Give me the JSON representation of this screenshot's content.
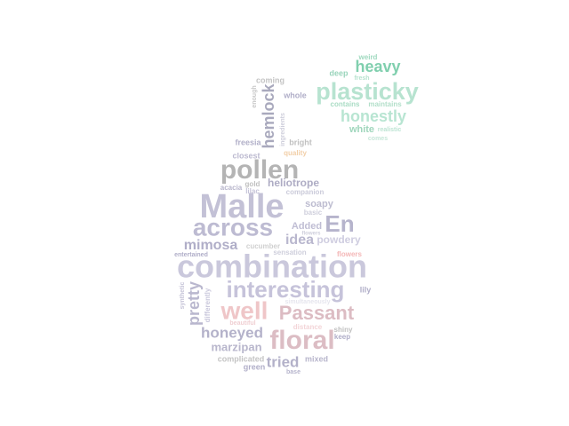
{
  "word_cloud": {
    "words": [
      {
        "text": "weird",
        "color": "#9fd9bf"
      },
      {
        "text": "heavy",
        "color": "#80cfae"
      },
      {
        "text": "deep",
        "color": "#99d4bb"
      },
      {
        "text": "fresh",
        "color": "#b8e3cf"
      },
      {
        "text": "plasticky",
        "color": "#b7e3d0"
      },
      {
        "text": "coming",
        "color": "#c4c4c4"
      },
      {
        "text": "enough",
        "color": "#c8c8c8"
      },
      {
        "text": "whole",
        "color": "#b0aec8"
      },
      {
        "text": "contains",
        "color": "#a9dcc4"
      },
      {
        "text": "maintains",
        "color": "#b2dfc9"
      },
      {
        "text": "hemlock",
        "color": "#a9a9bd"
      },
      {
        "text": "ingredients",
        "color": "#cfcfdc"
      },
      {
        "text": "honestly",
        "color": "#b8e5d2"
      },
      {
        "text": "white",
        "color": "#9fd6bc"
      },
      {
        "text": "realistic",
        "color": "#bde4d3"
      },
      {
        "text": "comes",
        "color": "#c7e7d9"
      },
      {
        "text": "freesia",
        "color": "#b2b0c9"
      },
      {
        "text": "bright",
        "color": "#c0c0c0"
      },
      {
        "text": "closest",
        "color": "#bcbad0"
      },
      {
        "text": "quality",
        "color": "#f2cfa8"
      },
      {
        "text": "pollen",
        "color": "#b4b4b4"
      },
      {
        "text": "acacia",
        "color": "#b7b5cb"
      },
      {
        "text": "gold",
        "color": "#c0c0c0"
      },
      {
        "text": "lilac",
        "color": "#c6c4d8"
      },
      {
        "text": "heliotrope",
        "color": "#aeacc4"
      },
      {
        "text": "companion",
        "color": "#cbcbda"
      },
      {
        "text": "soapy",
        "color": "#bdbcd0"
      },
      {
        "text": "Malle",
        "color": "#c3c1d6"
      },
      {
        "text": "basic",
        "color": "#cfcfdc"
      },
      {
        "text": "across",
        "color": "#bdbbd2"
      },
      {
        "text": "En",
        "color": "#b6b4cc"
      },
      {
        "text": "Added",
        "color": "#c0bed4"
      },
      {
        "text": "flowers",
        "color": "#cfcfdc"
      },
      {
        "text": "mimosa",
        "color": "#b0aec8"
      },
      {
        "text": "cucumber",
        "color": "#d0d0d0"
      },
      {
        "text": "idea",
        "color": "#b9b7ce"
      },
      {
        "text": "powdery",
        "color": "#cfcde0"
      },
      {
        "text": "entertained",
        "color": "#b0aec8"
      },
      {
        "text": "sensation",
        "color": "#cfcfdc"
      },
      {
        "text": "flowers",
        "color": "#f4b7b7"
      },
      {
        "text": "combination",
        "color": "#cac8dc"
      },
      {
        "text": "synthetic",
        "color": "#c6c4d8"
      },
      {
        "text": "interesting",
        "color": "#c6c3da"
      },
      {
        "text": "pretty",
        "color": "#b9b7ce"
      },
      {
        "text": "differently",
        "color": "#cac8dc"
      },
      {
        "text": "lily",
        "color": "#b0aec8"
      },
      {
        "text": "simultaneously",
        "color": "#e6e6ee"
      },
      {
        "text": "well",
        "color": "#efc6c8"
      },
      {
        "text": "Passant",
        "color": "#dcbcc3"
      },
      {
        "text": "honeyed",
        "color": "#b4b2ca"
      },
      {
        "text": "beautiful",
        "color": "#f0cfd3"
      },
      {
        "text": "floral",
        "color": "#dcbdc4"
      },
      {
        "text": "distance",
        "color": "#f3d5d8"
      },
      {
        "text": "shiny",
        "color": "#c0c0c0"
      },
      {
        "text": "keep",
        "color": "#b0aec8"
      },
      {
        "text": "marzipan",
        "color": "#b8b6cc"
      },
      {
        "text": "complicated",
        "color": "#c4c4c4"
      },
      {
        "text": "tried",
        "color": "#b3b1c9"
      },
      {
        "text": "mixed",
        "color": "#b8b6cc"
      },
      {
        "text": "green",
        "color": "#b0aec8"
      },
      {
        "text": "base",
        "color": "#b6b4cc"
      }
    ]
  }
}
